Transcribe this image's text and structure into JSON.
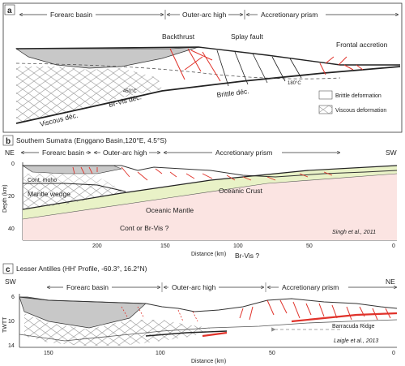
{
  "panel_a": {
    "letter": "a",
    "zones": [
      "Forearc basin",
      "Outer-arc high",
      "Accretionary prism"
    ],
    "labels": {
      "backthrust": "Backthrust",
      "splay_fault": "Splay fault",
      "frontal_accretion": "Frontal accretion",
      "temp_450": "450°C",
      "temp_180": "180°C",
      "viscous_dec": "Viscous déc.",
      "br_vis_dec": "Br-Vis déc.",
      "brittle_dec": "Brittle déc."
    },
    "legend": {
      "brittle": "Brittle deformation",
      "viscous": "Viscous deformation"
    }
  },
  "panel_b": {
    "letter": "b",
    "title": "Southern Sumatra (Enggano Basin,120°E, 4.5°S)",
    "dir_left": "NE",
    "dir_right": "SW",
    "zones": [
      "Forearc basin",
      "Outer-arc high",
      "Accretionary prism"
    ],
    "labels": {
      "cont_moho": "Cont. moho",
      "mantle_wedge": "Mantle wedge",
      "oceanic_crust": "Oceanic Crust",
      "oceanic_mantle": "Oceanic Mantle",
      "cont_or_brvis": "Cont or  Br-Vis ?",
      "br_vis_q": "Br-Vis ?",
      "citation": "Singh et al., 2011"
    },
    "ylabel": "Depth (km)",
    "xlabel": "Distance (km)",
    "yticks": [
      "0",
      "20",
      "40"
    ],
    "xticks": [
      "200",
      "150",
      "100",
      "50",
      "0"
    ]
  },
  "panel_c": {
    "letter": "c",
    "title": "Lesser Antilles (HH' Profile, -60.3°, 16.2°N)",
    "dir_left": "SW",
    "dir_right": "NE",
    "zones": [
      "Forearc basin",
      "Outer-arc high",
      "Accretionary prism"
    ],
    "labels": {
      "barracuda": "Barracuda Ridge",
      "citation": "Laigle et al., 2013"
    },
    "ylabel": "TWTT",
    "xlabel": "Distance (km)",
    "yticks": [
      "6",
      "10",
      "14"
    ],
    "xticks": [
      "150",
      "100",
      "50",
      "0"
    ]
  },
  "colors": {
    "red_fault": "#e0322a",
    "basin_grey": "#c8c8c8",
    "crust_green": "#e9f2c7",
    "mantle_pink": "#fbe4e2"
  }
}
